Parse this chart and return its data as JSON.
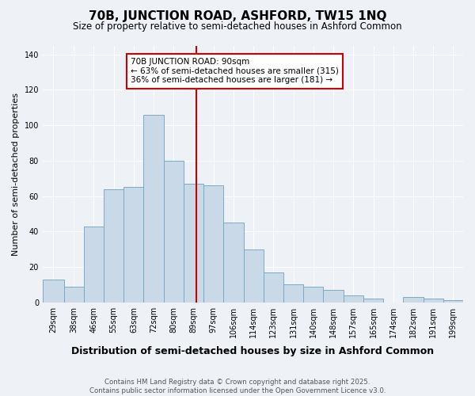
{
  "title": "70B, JUNCTION ROAD, ASHFORD, TW15 1NQ",
  "subtitle": "Size of property relative to semi-detached houses in Ashford Common",
  "xlabel": "Distribution of semi-detached houses by size in Ashford Common",
  "ylabel": "Number of semi-detached properties",
  "footnote": "Contains HM Land Registry data © Crown copyright and database right 2025.\nContains public sector information licensed under the Open Government Licence v3.0.",
  "property_size": 90,
  "property_label": "70B JUNCTION ROAD: 90sqm",
  "pct_smaller": 63,
  "pct_larger": 36,
  "n_smaller": 315,
  "n_larger": 181,
  "bar_color": "#c9d9e8",
  "bar_edge_color": "#7aaac8",
  "vline_color": "#cc0000",
  "annotation_box_color": "#cc0000",
  "categories": [
    "29sqm",
    "38sqm",
    "46sqm",
    "55sqm",
    "63sqm",
    "72sqm",
    "80sqm",
    "89sqm",
    "97sqm",
    "106sqm",
    "114sqm",
    "123sqm",
    "131sqm",
    "140sqm",
    "148sqm",
    "157sqm",
    "165sqm",
    "174sqm",
    "182sqm",
    "191sqm",
    "199sqm"
  ],
  "bin_edges": [
    24.5,
    33.5,
    42.0,
    50.5,
    59.0,
    67.5,
    76.0,
    84.5,
    93.0,
    101.5,
    110.0,
    118.5,
    127.0,
    135.5,
    144.0,
    152.5,
    161.0,
    169.5,
    178.0,
    186.5,
    195.0,
    203.5
  ],
  "values": [
    13,
    9,
    43,
    64,
    65,
    106,
    80,
    67,
    66,
    45,
    30,
    17,
    10,
    9,
    7,
    4,
    2,
    0,
    3,
    2,
    1
  ],
  "ylim": [
    0,
    145
  ],
  "yticks": [
    0,
    20,
    40,
    60,
    80,
    100,
    120,
    140
  ],
  "background_color": "#eef2f7",
  "grid_color": "#ffffff"
}
